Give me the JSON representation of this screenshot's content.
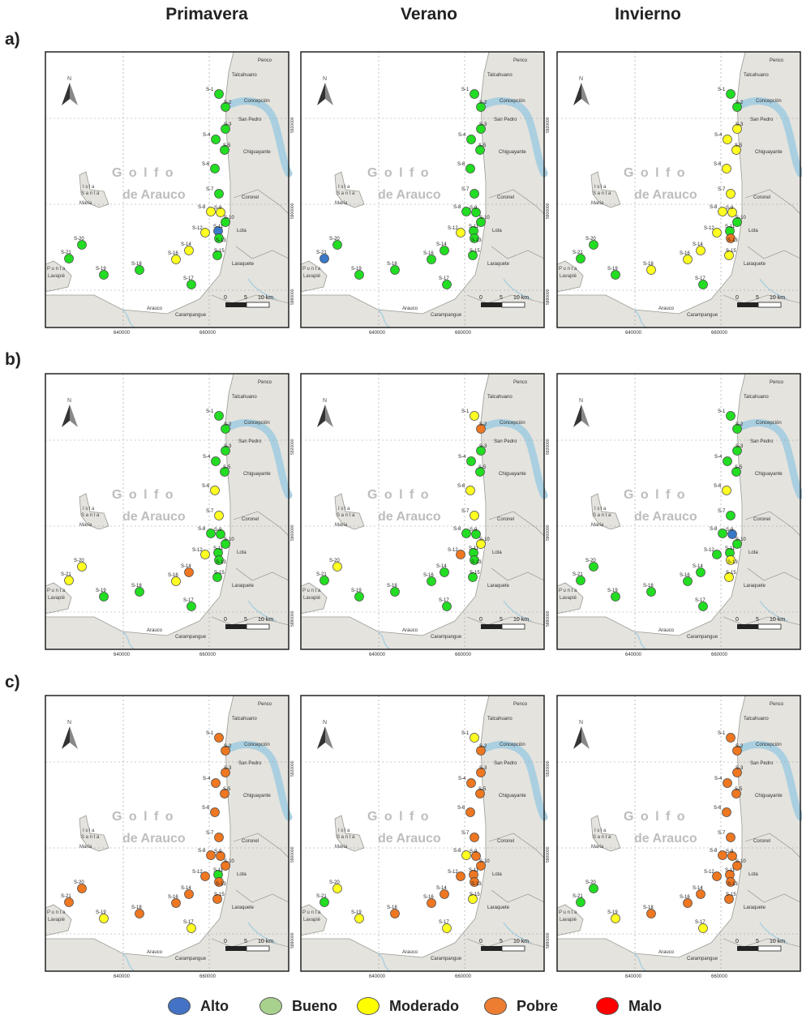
{
  "columns": [
    "Primavera",
    "Verano",
    "Invierno"
  ],
  "row_labels": [
    "a)",
    "b)",
    "c)"
  ],
  "map_labels": {
    "gulf_line1": "G o l f o",
    "gulf_line2": "de Arauco",
    "island_line1": "I s l a",
    "island_line2": "S a n t a",
    "island_line3": "María",
    "punta_line1": "P u n t a",
    "punta_line2": "Lavapié",
    "places": [
      "Penco",
      "Talcahuano",
      "Concepción",
      "San Pedro",
      "Chiguayante",
      "Coronel",
      "Lota",
      "Laraquete",
      "Arauco",
      "Carampangue"
    ],
    "north": "N",
    "scale": [
      "0",
      "5",
      "10 km"
    ],
    "x_ticks_a": [
      "640000",
      "660000"
    ],
    "x_ticks": [
      "640000",
      "660000"
    ],
    "y_ticks": [
      "5920000",
      "5900000",
      "5880000"
    ]
  },
  "stations": [
    "S-1",
    "S-2",
    "S-3",
    "S-4",
    "S-5",
    "S-6",
    "S-7",
    "S-8",
    "S-9",
    "S-10",
    "S-11",
    "S-12",
    "S-13",
    "S-14",
    "S-15",
    "S-16",
    "S-17",
    "S-18",
    "S-19",
    "S-20",
    "S-21"
  ],
  "categories": [
    {
      "name": "Alto",
      "color": "#3a78c8"
    },
    {
      "name": "Bueno",
      "color": "#22dd22"
    },
    {
      "name": "Moderado",
      "color": "#ffff22"
    },
    {
      "name": "Pobre",
      "color": "#ee7722"
    },
    {
      "name": "Malo",
      "color": "#ee0000"
    }
  ],
  "legend": [
    {
      "name": "Alto",
      "color": "#4472c4"
    },
    {
      "name": "Bueno",
      "color": "#a9d18e"
    },
    {
      "name": "Moderado",
      "color": "#ffff00"
    },
    {
      "name": "Pobre",
      "color": "#ed7d31"
    },
    {
      "name": "Malo",
      "color": "#ff0000"
    }
  ],
  "panels": [
    {
      "row": "a)",
      "season": "Primavera",
      "status": [
        "Bueno",
        "Bueno",
        "Bueno",
        "Bueno",
        "Bueno",
        "Bueno",
        "Bueno",
        "Moderado",
        "Moderado",
        "Bueno",
        "Alto",
        "Moderado",
        "Bueno",
        "Moderado",
        "Bueno",
        "Moderado",
        "Bueno",
        "Bueno",
        "Bueno",
        "Bueno",
        "Bueno"
      ]
    },
    {
      "row": "a)",
      "season": "Verano",
      "status": [
        "Bueno",
        "Bueno",
        "Bueno",
        "Bueno",
        "Bueno",
        "Bueno",
        "Bueno",
        "Bueno",
        "Bueno",
        "Bueno",
        "Bueno",
        "Moderado",
        "Bueno",
        "Bueno",
        "Bueno",
        "Bueno",
        "Bueno",
        "Bueno",
        "Bueno",
        "Bueno",
        "Alto"
      ]
    },
    {
      "row": "a)",
      "season": "Invierno",
      "status": [
        "Bueno",
        "Bueno",
        "Moderado",
        "Moderado",
        "Moderado",
        "Moderado",
        "Moderado",
        "Moderado",
        "Moderado",
        "Bueno",
        "Bueno",
        "Moderado",
        "Pobre",
        "Moderado",
        "Moderado",
        "Moderado",
        "Bueno",
        "Moderado",
        "Bueno",
        "Bueno",
        "Bueno"
      ]
    },
    {
      "row": "b)",
      "season": "Primavera",
      "status": [
        "Bueno",
        "Bueno",
        "Bueno",
        "Bueno",
        "Bueno",
        "Moderado",
        "Moderado",
        "Bueno",
        "Bueno",
        "Bueno",
        "Bueno",
        "Moderado",
        "Bueno",
        "Pobre",
        "Bueno",
        "Moderado",
        "Bueno",
        "Bueno",
        "Bueno",
        "Moderado",
        "Moderado"
      ]
    },
    {
      "row": "b)",
      "season": "Verano",
      "status": [
        "Moderado",
        "Pobre",
        "Bueno",
        "Bueno",
        "Bueno",
        "Moderado",
        "Moderado",
        "Bueno",
        "Bueno",
        "Moderado",
        "Bueno",
        "Pobre",
        "Bueno",
        "Bueno",
        "Bueno",
        "Bueno",
        "Bueno",
        "Bueno",
        "Bueno",
        "Moderado",
        "Bueno"
      ]
    },
    {
      "row": "b)",
      "season": "Invierno",
      "status": [
        "Bueno",
        "Bueno",
        "Bueno",
        "Bueno",
        "Bueno",
        "Moderado",
        "Bueno",
        "Bueno",
        "Alto",
        "Bueno",
        "Bueno",
        "Bueno",
        "Moderado",
        "Bueno",
        "Moderado",
        "Bueno",
        "Bueno",
        "Bueno",
        "Bueno",
        "Bueno",
        "Bueno"
      ]
    },
    {
      "row": "c)",
      "season": "Primavera",
      "status": [
        "Pobre",
        "Pobre",
        "Pobre",
        "Pobre",
        "Pobre",
        "Pobre",
        "Pobre",
        "Pobre",
        "Pobre",
        "Pobre",
        "Bueno",
        "Pobre",
        "Pobre",
        "Pobre",
        "Pobre",
        "Pobre",
        "Moderado",
        "Pobre",
        "Moderado",
        "Pobre",
        "Pobre"
      ]
    },
    {
      "row": "c)",
      "season": "Verano",
      "status": [
        "Moderado",
        "Pobre",
        "Pobre",
        "Pobre",
        "Pobre",
        "Pobre",
        "Pobre",
        "Moderado",
        "Pobre",
        "Pobre",
        "Pobre",
        "Pobre",
        "Pobre",
        "Pobre",
        "Moderado",
        "Pobre",
        "Moderado",
        "Pobre",
        "Moderado",
        "Moderado",
        "Bueno"
      ]
    },
    {
      "row": "c)",
      "season": "Invierno",
      "status": [
        "Pobre",
        "Pobre",
        "Pobre",
        "Pobre",
        "Pobre",
        "Pobre",
        "Pobre",
        "Pobre",
        "Pobre",
        "Pobre",
        "Pobre",
        "Pobre",
        "Pobre",
        "Pobre",
        "Pobre",
        "Pobre",
        "Moderado",
        "Pobre",
        "Moderado",
        "Bueno",
        "Bueno"
      ]
    }
  ]
}
